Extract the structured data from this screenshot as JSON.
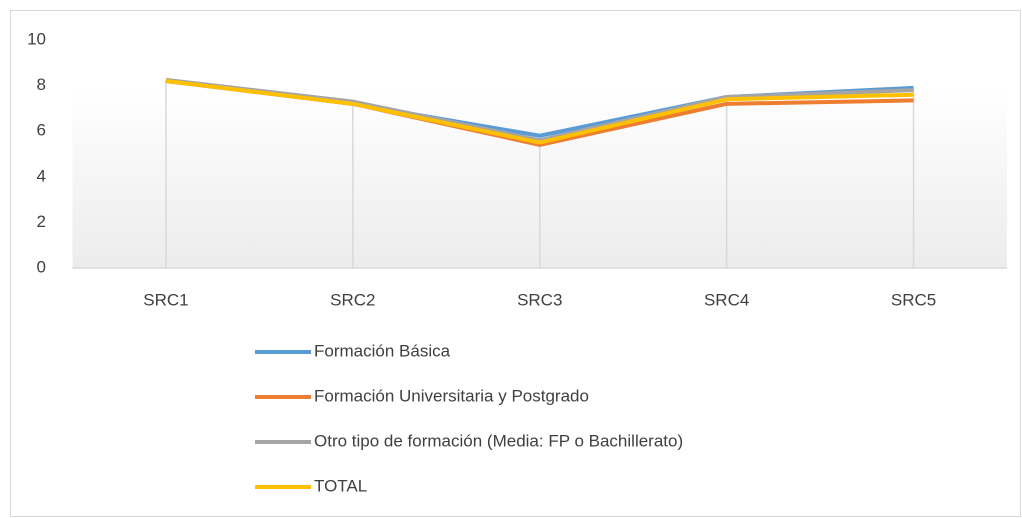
{
  "chart_data": {
    "type": "line",
    "categories": [
      "SRC1",
      "SRC2",
      "SRC3",
      "SRC4",
      "SRC5"
    ],
    "series": [
      {
        "name": "Formación Básica",
        "color": "#5b9bd5",
        "values": [
          8.2,
          7.2,
          5.8,
          7.5,
          7.9
        ]
      },
      {
        "name": "Formación Universitaria y Postgrado",
        "color": "#ed7d31",
        "values": [
          8.2,
          7.2,
          5.4,
          7.2,
          7.35
        ]
      },
      {
        "name": "Otro tipo de formación (Media: FP o Bachillerato)",
        "color": "#a5a5a5",
        "values": [
          8.25,
          7.3,
          5.6,
          7.5,
          7.8
        ]
      },
      {
        "name": "TOTAL",
        "color": "#ffc000",
        "values": [
          8.2,
          7.2,
          5.5,
          7.4,
          7.6
        ]
      }
    ],
    "ylim": [
      0,
      10
    ],
    "yticks": [
      0,
      2,
      4,
      6,
      8,
      10
    ],
    "grid": false,
    "legend": "bottom"
  }
}
